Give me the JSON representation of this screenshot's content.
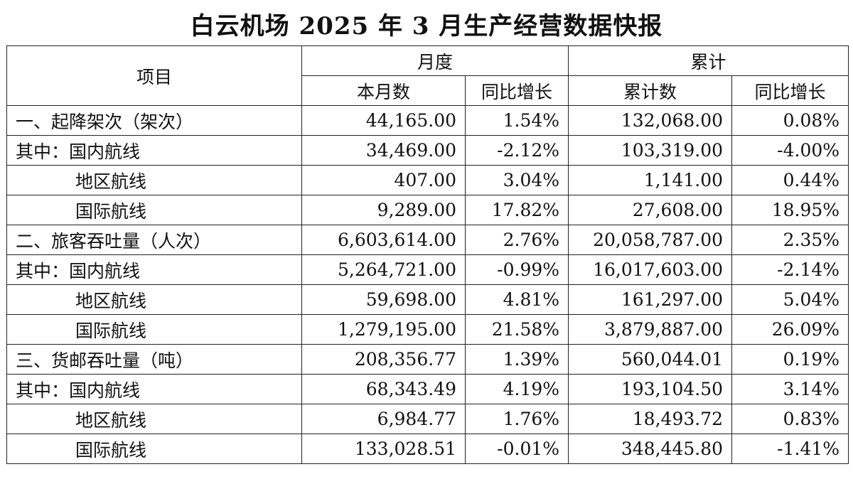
{
  "title": "白云机场 2025 年 3 月生产经营数据快报",
  "headers": {
    "item": "项目",
    "monthly": "月度",
    "cumulative": "累计",
    "month_count": "本月数",
    "month_yoy": "同比增长",
    "cum_count": "累计数",
    "cum_yoy": "同比增长"
  },
  "rows": [
    {
      "label": "一、起降架次（架次）",
      "month": "44,165.00",
      "month_yoy": "1.54%",
      "cum": "132,068.00",
      "cum_yoy": "0.08%"
    },
    {
      "label": "其中：国内航线",
      "month": "34,469.00",
      "month_yoy": "-2.12%",
      "cum": "103,319.00",
      "cum_yoy": "-4.00%"
    },
    {
      "label": "地区航线",
      "month": "407.00",
      "month_yoy": "3.04%",
      "cum": "1,141.00",
      "cum_yoy": "0.44%"
    },
    {
      "label": "国际航线",
      "month": "9,289.00",
      "month_yoy": "17.82%",
      "cum": "27,608.00",
      "cum_yoy": "18.95%"
    },
    {
      "label": "二、旅客吞吐量（人次）",
      "month": "6,603,614.00",
      "month_yoy": "2.76%",
      "cum": "20,058,787.00",
      "cum_yoy": "2.35%"
    },
    {
      "label": "其中：国内航线",
      "month": "5,264,721.00",
      "month_yoy": "-0.99%",
      "cum": "16,017,603.00",
      "cum_yoy": "-2.14%"
    },
    {
      "label": "地区航线",
      "month": "59,698.00",
      "month_yoy": "4.81%",
      "cum": "161,297.00",
      "cum_yoy": "5.04%"
    },
    {
      "label": "国际航线",
      "month": "1,279,195.00",
      "month_yoy": "21.58%",
      "cum": "3,879,887.00",
      "cum_yoy": "26.09%"
    },
    {
      "label": "三、货邮吞吐量（吨）",
      "month": "208,356.77",
      "month_yoy": "1.39%",
      "cum": "560,044.01",
      "cum_yoy": "0.19%"
    },
    {
      "label": "其中：国内航线",
      "month": "68,343.49",
      "month_yoy": "4.19%",
      "cum": "193,104.50",
      "cum_yoy": "3.14%"
    },
    {
      "label": "地区航线",
      "month": "6,984.77",
      "month_yoy": "1.76%",
      "cum": "18,493.72",
      "cum_yoy": "0.83%"
    },
    {
      "label": "国际航线",
      "month": "133,028.51",
      "month_yoy": "-0.01%",
      "cum": "348,445.80",
      "cum_yoy": "-1.41%"
    }
  ]
}
